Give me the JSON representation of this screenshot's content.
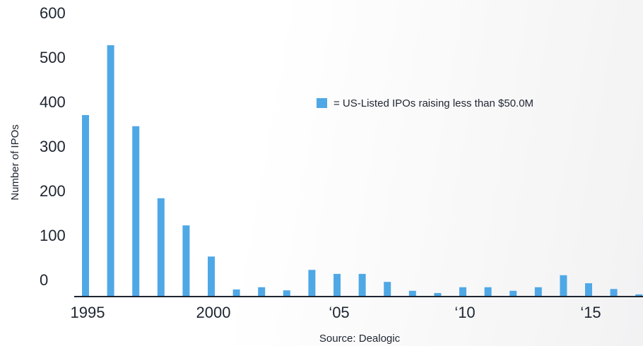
{
  "chart_data": {
    "type": "bar",
    "y_label": "Number of IPOs",
    "source": "Source: Dealogic",
    "categories": [
      "1995",
      null,
      null,
      null,
      null,
      "2000",
      null,
      null,
      null,
      null,
      "‘05",
      null,
      null,
      null,
      null,
      "‘10",
      null,
      null,
      null,
      null,
      "‘15",
      null,
      null
    ],
    "series": [
      {
        "name": "= US-Listed IPOs raising less than $50.0M",
        "color": "#4fa8e6",
        "values": [
          408,
          565,
          383,
          221,
          160,
          90,
          16,
          21,
          14,
          60,
          51,
          51,
          33,
          13,
          8,
          21,
          21,
          13,
          21,
          48,
          30,
          17,
          5
        ]
      }
    ],
    "ylim": [
      0,
      600
    ],
    "yticks": [
      0,
      100,
      200,
      300,
      400,
      500,
      600
    ],
    "grid": false
  }
}
